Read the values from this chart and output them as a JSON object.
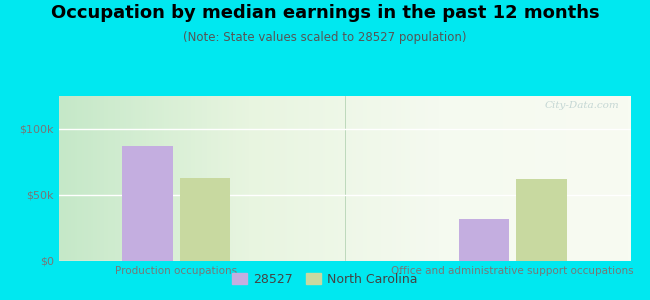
{
  "title": "Occupation by median earnings in the past 12 months",
  "subtitle": "(Note: State values scaled to 28527 population)",
  "categories": [
    "Production occupations",
    "Office and administrative support occupations"
  ],
  "series": {
    "28527": [
      87000,
      32000
    ],
    "North Carolina": [
      63000,
      62000
    ]
  },
  "bar_colors": {
    "28527": "#c4aee0",
    "North Carolina": "#c8d9a0"
  },
  "ylim": [
    0,
    125000
  ],
  "yticks": [
    0,
    50000,
    100000
  ],
  "ytick_labels": [
    "$0",
    "$50k",
    "$100k"
  ],
  "outer_bg": "#00e8f0",
  "plot_bg_left": "#d0eed8",
  "plot_bg_right": "#eef8e8",
  "title_fontsize": 13,
  "subtitle_fontsize": 8.5,
  "bar_width": 0.3,
  "watermark": "City-Data.com",
  "legend_labels": [
    "28527",
    "North Carolina"
  ]
}
